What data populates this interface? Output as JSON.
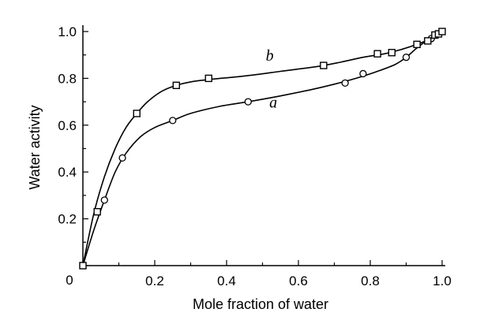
{
  "chart_data": {
    "type": "scatter",
    "title": "",
    "xlabel": "Mole fraction of water",
    "ylabel": "Water activity",
    "xlim": [
      0,
      1.0
    ],
    "ylim": [
      0,
      1.0
    ],
    "origin_label": "0",
    "x_ticks": [
      0.2,
      0.4,
      0.6,
      0.8,
      1.0
    ],
    "x_tick_labels": [
      "0.2",
      "0.4",
      "0.6",
      "0.8",
      "1.0"
    ],
    "y_ticks": [
      0.2,
      0.4,
      0.6,
      0.8,
      1.0
    ],
    "y_tick_labels": [
      "0.2",
      "0.4",
      "0.6",
      "0.8",
      "1.0"
    ],
    "grid": false,
    "series": [
      {
        "name": "a",
        "marker": "circle",
        "points": [
          [
            0.0,
            0.0
          ],
          [
            0.06,
            0.28
          ],
          [
            0.11,
            0.46
          ],
          [
            0.25,
            0.62
          ],
          [
            0.46,
            0.7
          ],
          [
            0.73,
            0.78
          ],
          [
            0.78,
            0.82
          ],
          [
            0.9,
            0.89
          ],
          [
            0.97,
            0.97
          ]
        ],
        "curve": [
          [
            0.0,
            0.0
          ],
          [
            0.03,
            0.15
          ],
          [
            0.06,
            0.28
          ],
          [
            0.09,
            0.4
          ],
          [
            0.12,
            0.48
          ],
          [
            0.16,
            0.55
          ],
          [
            0.2,
            0.59
          ],
          [
            0.25,
            0.62
          ],
          [
            0.3,
            0.65
          ],
          [
            0.38,
            0.68
          ],
          [
            0.46,
            0.7
          ],
          [
            0.55,
            0.725
          ],
          [
            0.63,
            0.75
          ],
          [
            0.7,
            0.775
          ],
          [
            0.76,
            0.8
          ],
          [
            0.82,
            0.83
          ],
          [
            0.87,
            0.86
          ],
          [
            0.9,
            0.89
          ],
          [
            0.93,
            0.93
          ],
          [
            0.96,
            0.965
          ],
          [
            0.98,
            0.99
          ],
          [
            1.0,
            1.0
          ]
        ]
      },
      {
        "name": "b",
        "marker": "square",
        "points": [
          [
            0.0,
            0.0
          ],
          [
            0.04,
            0.23
          ],
          [
            0.15,
            0.65
          ],
          [
            0.26,
            0.77
          ],
          [
            0.35,
            0.8
          ],
          [
            0.67,
            0.855
          ],
          [
            0.82,
            0.905
          ],
          [
            0.86,
            0.91
          ],
          [
            0.93,
            0.945
          ],
          [
            0.96,
            0.96
          ],
          [
            0.98,
            0.985
          ],
          [
            0.99,
            0.99
          ],
          [
            1.0,
            1.0
          ]
        ],
        "curve": [
          [
            0.0,
            0.0
          ],
          [
            0.03,
            0.22
          ],
          [
            0.06,
            0.38
          ],
          [
            0.09,
            0.5
          ],
          [
            0.12,
            0.59
          ],
          [
            0.15,
            0.65
          ],
          [
            0.18,
            0.7
          ],
          [
            0.22,
            0.745
          ],
          [
            0.26,
            0.77
          ],
          [
            0.3,
            0.785
          ],
          [
            0.35,
            0.795
          ],
          [
            0.45,
            0.81
          ],
          [
            0.55,
            0.83
          ],
          [
            0.65,
            0.85
          ],
          [
            0.72,
            0.87
          ],
          [
            0.78,
            0.89
          ],
          [
            0.84,
            0.905
          ],
          [
            0.89,
            0.925
          ],
          [
            0.93,
            0.945
          ],
          [
            0.96,
            0.965
          ],
          [
            0.98,
            0.985
          ],
          [
            1.0,
            1.0
          ]
        ]
      }
    ],
    "curve_labels": [
      {
        "series": "a",
        "text": "a",
        "x": 0.53,
        "y": 0.675
      },
      {
        "series": "b",
        "text": "b",
        "x": 0.52,
        "y": 0.875
      }
    ]
  }
}
